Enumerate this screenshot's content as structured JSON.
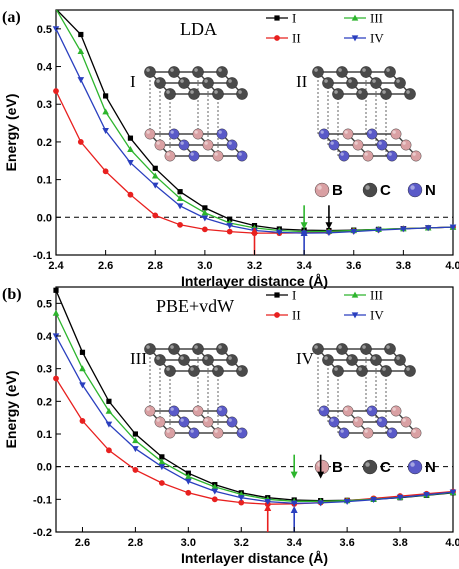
{
  "chart_data": [
    {
      "type": "line",
      "panel_label": "(a)",
      "method": "LDA",
      "xlabel": "Interlayer distance (Å)",
      "ylabel": "Energy (eV)",
      "xlim": [
        2.4,
        4.0
      ],
      "ylim": [
        -0.1,
        0.55
      ],
      "xticks": [
        "2.4",
        "2.6",
        "2.8",
        "3.0",
        "3.2",
        "3.4",
        "3.6",
        "3.8",
        "4.0"
      ],
      "yticks": [
        "-0.1",
        "0.0",
        "0.1",
        "0.2",
        "0.3",
        "0.4",
        "0.5"
      ],
      "zero_line": true,
      "legend_placement": "top-right",
      "structure_labels": [
        "I",
        "II"
      ],
      "atom_legend": [
        "B",
        "C",
        "N"
      ],
      "series": [
        {
          "name": "I",
          "color": "#000000",
          "marker": "square",
          "x": [
            2.4,
            2.5,
            2.6,
            2.7,
            2.8,
            2.9,
            3.0,
            3.1,
            3.2,
            3.3,
            3.4,
            3.5,
            3.6,
            3.7,
            3.8,
            3.9,
            4.0
          ],
          "y": [
            0.67,
            0.485,
            0.322,
            0.21,
            0.13,
            0.068,
            0.025,
            -0.005,
            -0.022,
            -0.031,
            -0.034,
            -0.035,
            -0.034,
            -0.032,
            -0.03,
            -0.028,
            -0.026
          ]
        },
        {
          "name": "II",
          "color": "#e8201f",
          "marker": "circle",
          "x": [
            2.4,
            2.5,
            2.6,
            2.7,
            2.8,
            2.9,
            3.0,
            3.1,
            3.2,
            3.3,
            3.4,
            3.5,
            3.6,
            3.7,
            3.8,
            3.9,
            4.0
          ],
          "y": [
            0.335,
            0.2,
            0.122,
            0.06,
            0.005,
            -0.02,
            -0.032,
            -0.038,
            -0.042,
            -0.042,
            -0.041,
            -0.039,
            -0.036,
            -0.033,
            -0.03,
            -0.028,
            -0.026
          ]
        },
        {
          "name": "III",
          "color": "#2db52d",
          "marker": "triangle-up",
          "x": [
            2.4,
            2.5,
            2.6,
            2.7,
            2.8,
            2.9,
            3.0,
            3.1,
            3.2,
            3.3,
            3.4,
            3.5,
            3.6,
            3.7,
            3.8,
            3.9,
            4.0
          ],
          "y": [
            0.6,
            0.44,
            0.28,
            0.18,
            0.11,
            0.05,
            0.012,
            -0.015,
            -0.028,
            -0.035,
            -0.038,
            -0.037,
            -0.035,
            -0.032,
            -0.03,
            -0.028,
            -0.026
          ]
        },
        {
          "name": "IV",
          "color": "#2a3fbf",
          "marker": "triangle-down",
          "x": [
            2.4,
            2.5,
            2.6,
            2.7,
            2.8,
            2.9,
            3.0,
            3.1,
            3.2,
            3.3,
            3.4,
            3.5,
            3.6,
            3.7,
            3.8,
            3.9,
            4.0
          ],
          "y": [
            0.5,
            0.365,
            0.23,
            0.145,
            0.085,
            0.03,
            -0.002,
            -0.022,
            -0.035,
            -0.04,
            -0.042,
            -0.041,
            -0.038,
            -0.034,
            -0.031,
            -0.028,
            -0.026
          ]
        }
      ],
      "arrows": [
        {
          "x": 3.2,
          "color": "#e8201f"
        },
        {
          "x": 3.4,
          "color": "#2db52d"
        },
        {
          "x": 3.4,
          "color": "#2a3fbf"
        },
        {
          "x": 3.5,
          "color": "#000000"
        }
      ]
    },
    {
      "type": "line",
      "panel_label": "(b)",
      "method": "PBE+vdW",
      "xlabel": "Interlayer distance (Å)",
      "ylabel": "Energy (eV)",
      "xlim": [
        2.5,
        4.0
      ],
      "ylim": [
        -0.2,
        0.55
      ],
      "xticks": [
        "2.6",
        "2.8",
        "3.0",
        "3.2",
        "3.4",
        "3.6",
        "3.8",
        "4.0"
      ],
      "yticks": [
        "-0.2",
        "-0.1",
        "0.0",
        "0.1",
        "0.2",
        "0.3",
        "0.4",
        "0.5"
      ],
      "zero_line": true,
      "legend_placement": "top-right",
      "structure_labels": [
        "III",
        "IV"
      ],
      "atom_legend": [
        "B",
        "C",
        "N"
      ],
      "series": [
        {
          "name": "I",
          "color": "#000000",
          "marker": "square",
          "x": [
            2.5,
            2.6,
            2.7,
            2.8,
            2.9,
            3.0,
            3.1,
            3.2,
            3.3,
            3.4,
            3.5,
            3.6,
            3.7,
            3.8,
            3.9,
            4.0
          ],
          "y": [
            0.54,
            0.35,
            0.2,
            0.1,
            0.03,
            -0.02,
            -0.055,
            -0.08,
            -0.095,
            -0.102,
            -0.104,
            -0.103,
            -0.1,
            -0.095,
            -0.088,
            -0.08
          ]
        },
        {
          "name": "II",
          "color": "#e8201f",
          "marker": "circle",
          "x": [
            2.5,
            2.6,
            2.7,
            2.8,
            2.9,
            3.0,
            3.1,
            3.2,
            3.3,
            3.4,
            3.5,
            3.6,
            3.7,
            3.8,
            3.9,
            4.0
          ],
          "y": [
            0.27,
            0.14,
            0.05,
            -0.01,
            -0.05,
            -0.08,
            -0.1,
            -0.11,
            -0.115,
            -0.114,
            -0.11,
            -0.104,
            -0.097,
            -0.09,
            -0.083,
            -0.076
          ]
        },
        {
          "name": "III",
          "color": "#2db52d",
          "marker": "triangle-up",
          "x": [
            2.5,
            2.6,
            2.7,
            2.8,
            2.9,
            3.0,
            3.1,
            3.2,
            3.3,
            3.4,
            3.5,
            3.6,
            3.7,
            3.8,
            3.9,
            4.0
          ],
          "y": [
            0.47,
            0.3,
            0.17,
            0.08,
            0.015,
            -0.03,
            -0.062,
            -0.085,
            -0.1,
            -0.106,
            -0.106,
            -0.104,
            -0.1,
            -0.094,
            -0.087,
            -0.079
          ]
        },
        {
          "name": "IV",
          "color": "#2a3fbf",
          "marker": "triangle-down",
          "x": [
            2.5,
            2.6,
            2.7,
            2.8,
            2.9,
            3.0,
            3.1,
            3.2,
            3.3,
            3.4,
            3.5,
            3.6,
            3.7,
            3.8,
            3.9,
            4.0
          ],
          "y": [
            0.4,
            0.25,
            0.13,
            0.055,
            0.0,
            -0.045,
            -0.075,
            -0.095,
            -0.107,
            -0.112,
            -0.111,
            -0.107,
            -0.101,
            -0.094,
            -0.086,
            -0.078
          ]
        }
      ],
      "arrows": [
        {
          "x": 3.3,
          "color": "#e8201f"
        },
        {
          "x": 3.4,
          "color": "#2db52d"
        },
        {
          "x": 3.4,
          "color": "#2a3fbf"
        },
        {
          "x": 3.5,
          "color": "#000000"
        }
      ]
    }
  ]
}
